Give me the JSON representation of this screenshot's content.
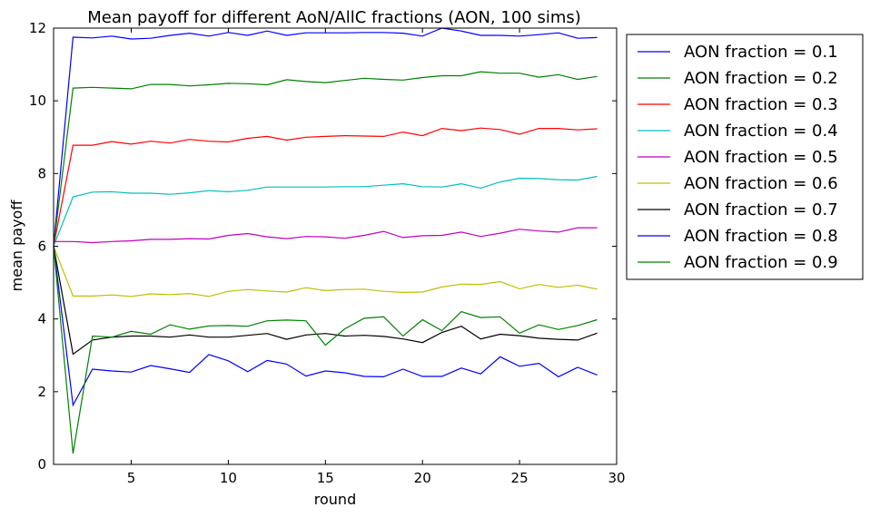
{
  "chart_data": {
    "type": "line",
    "title": "Mean payoff for different AoN/AllC fractions (AON, 100 sims)",
    "xlabel": "round",
    "ylabel": "mean payoff",
    "xlim": [
      1,
      30
    ],
    "ylim": [
      0,
      12
    ],
    "xticks": [
      5,
      10,
      15,
      20,
      25,
      30
    ],
    "yticks": [
      0,
      2,
      4,
      6,
      8,
      10,
      12
    ],
    "grid": false,
    "legend_position": "outside-right-top",
    "x": [
      1,
      2,
      3,
      4,
      5,
      6,
      7,
      8,
      9,
      10,
      11,
      12,
      13,
      14,
      15,
      16,
      17,
      18,
      19,
      20,
      21,
      22,
      23,
      24,
      25,
      26,
      27,
      28,
      29
    ],
    "series": [
      {
        "name": "AON fraction = 0.1",
        "color": "#0000ff",
        "values": [
          6.0,
          11.75,
          11.73,
          11.78,
          11.7,
          11.72,
          11.8,
          11.86,
          11.78,
          11.88,
          11.8,
          11.92,
          11.8,
          11.87,
          11.87,
          11.87,
          11.88,
          11.88,
          11.86,
          11.78,
          12.0,
          11.92,
          11.8,
          11.8,
          11.78,
          11.82,
          11.87,
          11.72,
          11.74
        ]
      },
      {
        "name": "AON fraction = 0.2",
        "color": "#008000",
        "values": [
          6.0,
          10.35,
          10.37,
          10.35,
          10.33,
          10.45,
          10.45,
          10.41,
          10.44,
          10.48,
          10.47,
          10.44,
          10.58,
          10.53,
          10.5,
          10.56,
          10.62,
          10.59,
          10.57,
          10.64,
          10.69,
          10.69,
          10.8,
          10.76,
          10.76,
          10.65,
          10.72,
          10.59,
          10.67
        ]
      },
      {
        "name": "AON fraction = 0.3",
        "color": "#ff0000",
        "values": [
          6.0,
          8.78,
          8.78,
          8.88,
          8.81,
          8.89,
          8.84,
          8.94,
          8.89,
          8.87,
          8.97,
          9.02,
          8.92,
          9.0,
          9.02,
          9.04,
          9.03,
          9.02,
          9.14,
          9.04,
          9.24,
          9.18,
          9.25,
          9.21,
          9.08,
          9.24,
          9.24,
          9.2,
          9.23
        ]
      },
      {
        "name": "AON fraction = 0.4",
        "color": "#00bfbf",
        "values": [
          6.0,
          7.36,
          7.49,
          7.5,
          7.46,
          7.46,
          7.43,
          7.47,
          7.53,
          7.5,
          7.54,
          7.63,
          7.63,
          7.63,
          7.63,
          7.64,
          7.64,
          7.68,
          7.72,
          7.64,
          7.63,
          7.72,
          7.6,
          7.77,
          7.87,
          7.86,
          7.83,
          7.82,
          7.92
        ]
      },
      {
        "name": "AON fraction = 0.5",
        "color": "#bf00bf",
        "values": [
          6.13,
          6.13,
          6.1,
          6.13,
          6.15,
          6.19,
          6.19,
          6.21,
          6.2,
          6.3,
          6.35,
          6.26,
          6.21,
          6.27,
          6.26,
          6.22,
          6.3,
          6.41,
          6.24,
          6.29,
          6.3,
          6.39,
          6.27,
          6.36,
          6.47,
          6.42,
          6.39,
          6.51,
          6.51
        ]
      },
      {
        "name": "AON fraction = 0.6",
        "color": "#bfbf00",
        "values": [
          6.0,
          4.63,
          4.63,
          4.66,
          4.62,
          4.69,
          4.67,
          4.7,
          4.62,
          4.76,
          4.81,
          4.77,
          4.74,
          4.86,
          4.78,
          4.81,
          4.82,
          4.76,
          4.73,
          4.74,
          4.88,
          4.96,
          4.95,
          5.03,
          4.83,
          4.95,
          4.87,
          4.93,
          4.82
        ]
      },
      {
        "name": "AON fraction = 0.7",
        "color": "#000000",
        "values": [
          6.0,
          3.03,
          3.42,
          3.5,
          3.53,
          3.53,
          3.5,
          3.56,
          3.5,
          3.5,
          3.55,
          3.6,
          3.44,
          3.56,
          3.6,
          3.53,
          3.55,
          3.52,
          3.45,
          3.35,
          3.63,
          3.8,
          3.45,
          3.58,
          3.54,
          3.47,
          3.44,
          3.42,
          3.61
        ]
      },
      {
        "name": "AON fraction = 0.8",
        "color": "#0000ff",
        "values": [
          6.0,
          1.63,
          2.62,
          2.57,
          2.54,
          2.72,
          2.63,
          2.53,
          3.02,
          2.85,
          2.55,
          2.86,
          2.76,
          2.43,
          2.57,
          2.52,
          2.42,
          2.41,
          2.62,
          2.42,
          2.42,
          2.65,
          2.49,
          2.96,
          2.7,
          2.78,
          2.41,
          2.67,
          2.46
        ]
      },
      {
        "name": "AON fraction = 0.9",
        "color": "#008000",
        "values": [
          6.0,
          0.3,
          3.53,
          3.5,
          3.66,
          3.58,
          3.84,
          3.72,
          3.81,
          3.82,
          3.8,
          3.95,
          3.97,
          3.95,
          3.28,
          3.73,
          4.02,
          4.06,
          3.53,
          3.98,
          3.68,
          4.2,
          4.04,
          4.06,
          3.61,
          3.84,
          3.71,
          3.82,
          3.98
        ]
      }
    ]
  }
}
